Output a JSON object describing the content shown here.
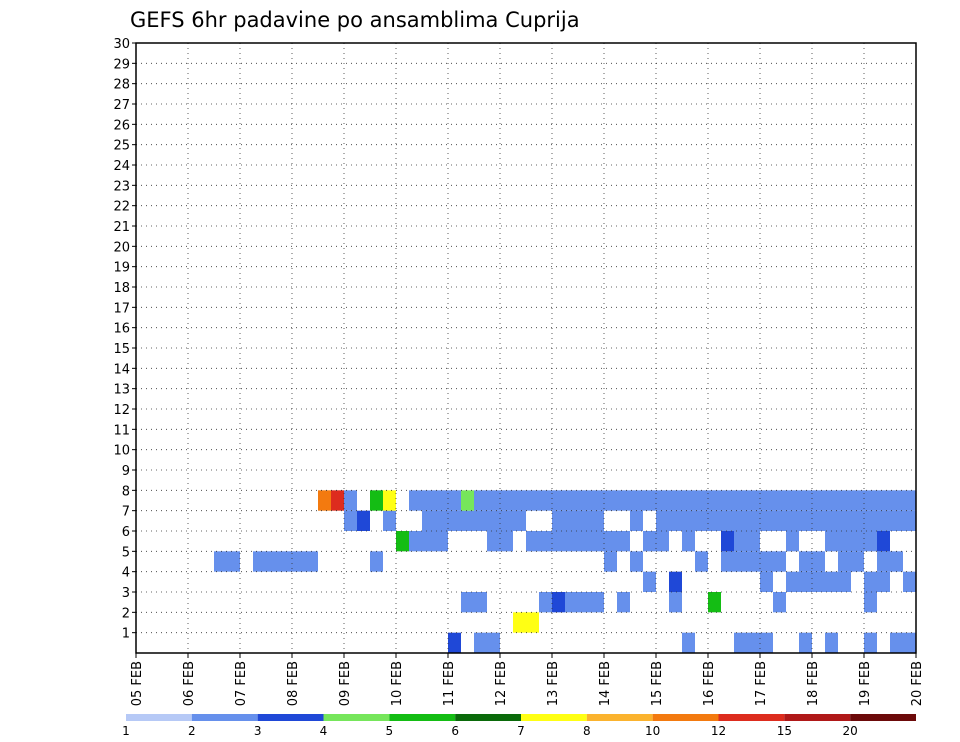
{
  "chart_data": {
    "type": "heatmap",
    "title": "GEFS 6hr padavine po ansamblima Cuprija",
    "xlabel": "",
    "ylabel": "",
    "x_tick_labels": [
      "05 FEB",
      "06 FEB",
      "07 FEB",
      "08 FEB",
      "09 FEB",
      "10 FEB",
      "11 FEB",
      "12 FEB",
      "13 FEB",
      "14 FEB",
      "15 FEB",
      "16 FEB",
      "17 FEB",
      "18 FEB",
      "19 FEB",
      "20 FEB"
    ],
    "x_range_steps": [
      0,
      60
    ],
    "steps_per_day": 4,
    "y_tick_labels": [
      "1",
      "2",
      "3",
      "4",
      "5",
      "6",
      "7",
      "8",
      "9",
      "10",
      "11",
      "12",
      "13",
      "14",
      "15",
      "16",
      "17",
      "18",
      "19",
      "20",
      "21",
      "22",
      "23",
      "24",
      "25",
      "26",
      "27",
      "28",
      "29",
      "30"
    ],
    "y_range": [
      0,
      30
    ],
    "grid": true,
    "colorbar": {
      "labels": [
        "1",
        "2",
        "3",
        "4",
        "5",
        "6",
        "7",
        "8",
        "10",
        "12",
        "15",
        "20"
      ],
      "colors": [
        "#b6c9f6",
        "#6690ec",
        "#1f48d7",
        "#76e65b",
        "#14bd14",
        "#0a6a0a",
        "#ffff14",
        "#fbb32e",
        "#f37a0f",
        "#dd2c1e",
        "#b01818",
        "#6c0a0a"
      ]
    },
    "cells": [
      [
        24,
        0,
        2
      ],
      [
        26,
        0,
        1
      ],
      [
        27,
        0,
        1
      ],
      [
        42,
        0,
        1
      ],
      [
        46,
        0,
        1
      ],
      [
        47,
        0,
        1
      ],
      [
        48,
        0,
        1
      ],
      [
        51,
        0,
        1
      ],
      [
        53,
        0,
        1
      ],
      [
        56,
        0,
        1
      ],
      [
        58,
        0,
        1
      ],
      [
        59,
        0,
        1
      ],
      [
        29,
        1,
        6
      ],
      [
        30,
        1,
        6
      ],
      [
        25,
        2,
        1
      ],
      [
        26,
        2,
        1
      ],
      [
        31,
        2,
        1
      ],
      [
        32,
        2,
        2
      ],
      [
        33,
        2,
        1
      ],
      [
        34,
        2,
        1
      ],
      [
        35,
        2,
        1
      ],
      [
        37,
        2,
        1
      ],
      [
        41,
        2,
        1
      ],
      [
        44,
        2,
        4
      ],
      [
        49,
        2,
        1
      ],
      [
        56,
        2,
        1
      ],
      [
        39,
        3,
        1
      ],
      [
        41,
        3,
        2
      ],
      [
        48,
        3,
        1
      ],
      [
        50,
        3,
        1
      ],
      [
        51,
        3,
        1
      ],
      [
        52,
        3,
        1
      ],
      [
        53,
        3,
        1
      ],
      [
        54,
        3,
        1
      ],
      [
        56,
        3,
        1
      ],
      [
        57,
        3,
        1
      ],
      [
        59,
        3,
        1
      ],
      [
        6,
        4,
        1
      ],
      [
        7,
        4,
        1
      ],
      [
        9,
        4,
        1
      ],
      [
        10,
        4,
        1
      ],
      [
        11,
        4,
        1
      ],
      [
        12,
        4,
        1
      ],
      [
        13,
        4,
        1
      ],
      [
        18,
        4,
        1
      ],
      [
        36,
        4,
        1
      ],
      [
        38,
        4,
        1
      ],
      [
        43,
        4,
        1
      ],
      [
        45,
        4,
        1
      ],
      [
        46,
        4,
        1
      ],
      [
        47,
        4,
        1
      ],
      [
        48,
        4,
        1
      ],
      [
        49,
        4,
        1
      ],
      [
        51,
        4,
        1
      ],
      [
        52,
        4,
        1
      ],
      [
        54,
        4,
        1
      ],
      [
        55,
        4,
        1
      ],
      [
        57,
        4,
        1
      ],
      [
        58,
        4,
        1
      ],
      [
        20,
        5,
        4
      ],
      [
        21,
        5,
        1
      ],
      [
        22,
        5,
        1
      ],
      [
        23,
        5,
        1
      ],
      [
        27,
        5,
        1
      ],
      [
        28,
        5,
        1
      ],
      [
        30,
        5,
        1
      ],
      [
        31,
        5,
        1
      ],
      [
        32,
        5,
        1
      ],
      [
        33,
        5,
        1
      ],
      [
        34,
        5,
        1
      ],
      [
        35,
        5,
        1
      ],
      [
        36,
        5,
        1
      ],
      [
        37,
        5,
        1
      ],
      [
        39,
        5,
        1
      ],
      [
        40,
        5,
        1
      ],
      [
        42,
        5,
        1
      ],
      [
        45,
        5,
        2
      ],
      [
        46,
        5,
        1
      ],
      [
        47,
        5,
        1
      ],
      [
        50,
        5,
        1
      ],
      [
        53,
        5,
        1
      ],
      [
        54,
        5,
        1
      ],
      [
        55,
        5,
        1
      ],
      [
        56,
        5,
        1
      ],
      [
        57,
        5,
        2
      ],
      [
        16,
        6,
        1
      ],
      [
        17,
        6,
        2
      ],
      [
        19,
        6,
        1
      ],
      [
        22,
        6,
        1
      ],
      [
        23,
        6,
        1
      ],
      [
        24,
        6,
        1
      ],
      [
        25,
        6,
        1
      ],
      [
        26,
        6,
        1
      ],
      [
        27,
        6,
        1
      ],
      [
        28,
        6,
        1
      ],
      [
        29,
        6,
        1
      ],
      [
        32,
        6,
        1
      ],
      [
        33,
        6,
        1
      ],
      [
        34,
        6,
        1
      ],
      [
        35,
        6,
        1
      ],
      [
        38,
        6,
        1
      ],
      [
        40,
        6,
        1
      ],
      [
        41,
        6,
        1
      ],
      [
        42,
        6,
        1
      ],
      [
        43,
        6,
        1
      ],
      [
        44,
        6,
        1
      ],
      [
        45,
        6,
        1
      ],
      [
        46,
        6,
        1
      ],
      [
        47,
        6,
        1
      ],
      [
        48,
        6,
        1
      ],
      [
        49,
        6,
        1
      ],
      [
        50,
        6,
        1
      ],
      [
        51,
        6,
        1
      ],
      [
        52,
        6,
        1
      ],
      [
        53,
        6,
        1
      ],
      [
        54,
        6,
        1
      ],
      [
        55,
        6,
        1
      ],
      [
        56,
        6,
        1
      ],
      [
        57,
        6,
        1
      ],
      [
        58,
        6,
        1
      ],
      [
        59,
        6,
        1
      ],
      [
        14,
        7,
        8
      ],
      [
        15,
        7,
        9
      ],
      [
        16,
        7,
        1
      ],
      [
        18,
        7,
        4
      ],
      [
        19,
        7,
        6
      ],
      [
        21,
        7,
        1
      ],
      [
        22,
        7,
        1
      ],
      [
        23,
        7,
        1
      ],
      [
        24,
        7,
        1
      ],
      [
        25,
        7,
        3
      ],
      [
        26,
        7,
        1
      ],
      [
        27,
        7,
        1
      ],
      [
        28,
        7,
        1
      ],
      [
        29,
        7,
        1
      ],
      [
        30,
        7,
        1
      ],
      [
        31,
        7,
        1
      ],
      [
        32,
        7,
        1
      ],
      [
        33,
        7,
        1
      ],
      [
        34,
        7,
        1
      ],
      [
        35,
        7,
        1
      ],
      [
        36,
        7,
        1
      ],
      [
        37,
        7,
        1
      ],
      [
        38,
        7,
        1
      ],
      [
        39,
        7,
        1
      ],
      [
        40,
        7,
        1
      ],
      [
        41,
        7,
        1
      ],
      [
        42,
        7,
        1
      ],
      [
        43,
        7,
        1
      ],
      [
        44,
        7,
        1
      ],
      [
        45,
        7,
        1
      ],
      [
        46,
        7,
        1
      ],
      [
        47,
        7,
        1
      ],
      [
        48,
        7,
        1
      ],
      [
        49,
        7,
        1
      ],
      [
        50,
        7,
        1
      ],
      [
        51,
        7,
        1
      ],
      [
        52,
        7,
        1
      ],
      [
        53,
        7,
        1
      ],
      [
        54,
        7,
        1
      ],
      [
        55,
        7,
        1
      ],
      [
        56,
        7,
        1
      ],
      [
        57,
        7,
        1
      ],
      [
        58,
        7,
        1
      ],
      [
        59,
        7,
        1
      ]
    ]
  }
}
